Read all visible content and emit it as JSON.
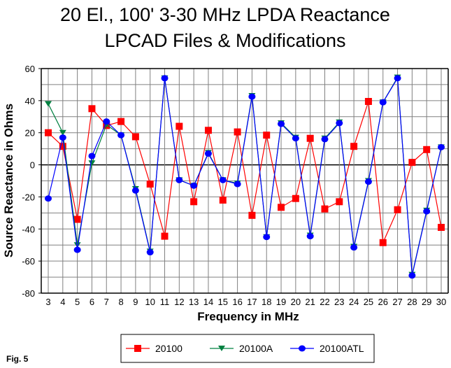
{
  "chart_data": {
    "type": "line",
    "title": "20 El., 100' 3-30 MHz LPDA Reactance",
    "subtitle": "LPCAD Files & Modifications",
    "xlabel": "Frequency in MHz",
    "ylabel": "Source Reactance in Ohms",
    "figure_label": "Fig. 5",
    "x": [
      3,
      4,
      5,
      6,
      7,
      8,
      9,
      10,
      11,
      12,
      13,
      14,
      15,
      16,
      17,
      18,
      19,
      20,
      21,
      22,
      23,
      24,
      25,
      26,
      27,
      28,
      29,
      30
    ],
    "xlim": [
      3,
      30
    ],
    "ylim": [
      -80,
      60
    ],
    "yticks": [
      60,
      40,
      20,
      0,
      -20,
      -40,
      -60,
      -80
    ],
    "xticks": [
      3,
      4,
      5,
      6,
      7,
      8,
      9,
      10,
      11,
      12,
      13,
      14,
      15,
      16,
      17,
      18,
      19,
      20,
      21,
      22,
      23,
      24,
      25,
      26,
      27,
      28,
      29,
      30
    ],
    "grid": true,
    "legend_position": "bottom-center",
    "series": [
      {
        "name": "20100",
        "color": "#ff0000",
        "marker": "square",
        "values": [
          20,
          11.5,
          -34,
          35,
          24.5,
          27,
          17.5,
          -12,
          -44.5,
          24,
          -23,
          21.5,
          -22,
          20.5,
          -31.5,
          18.5,
          -26.5,
          -21,
          16.5,
          -27.5,
          -23,
          11.5,
          39.5,
          -48.5,
          -28,
          1.5,
          9.5,
          -39
        ]
      },
      {
        "name": "20100A",
        "color": "#008040",
        "marker": "triangle-down",
        "values": [
          38,
          20,
          -50,
          1,
          25,
          18.5,
          -15,
          -54,
          54,
          -9.5,
          -13,
          7.5,
          -9.5,
          -11.5,
          43,
          -45,
          26,
          17,
          -44,
          16.5,
          26.5,
          -51,
          -10,
          39,
          54.5,
          -68.5,
          -28.5,
          11
        ]
      },
      {
        "name": "20100ATL",
        "color": "#0000ff",
        "marker": "circle",
        "values": [
          -21,
          17,
          -53,
          5.5,
          27,
          18.5,
          -16,
          -54.5,
          54,
          -9.5,
          -13,
          7,
          -9.5,
          -12,
          42.5,
          -45,
          25.5,
          16.5,
          -44.5,
          16,
          26,
          -51.5,
          -10.5,
          39,
          54,
          -69,
          -29,
          11
        ]
      }
    ]
  }
}
